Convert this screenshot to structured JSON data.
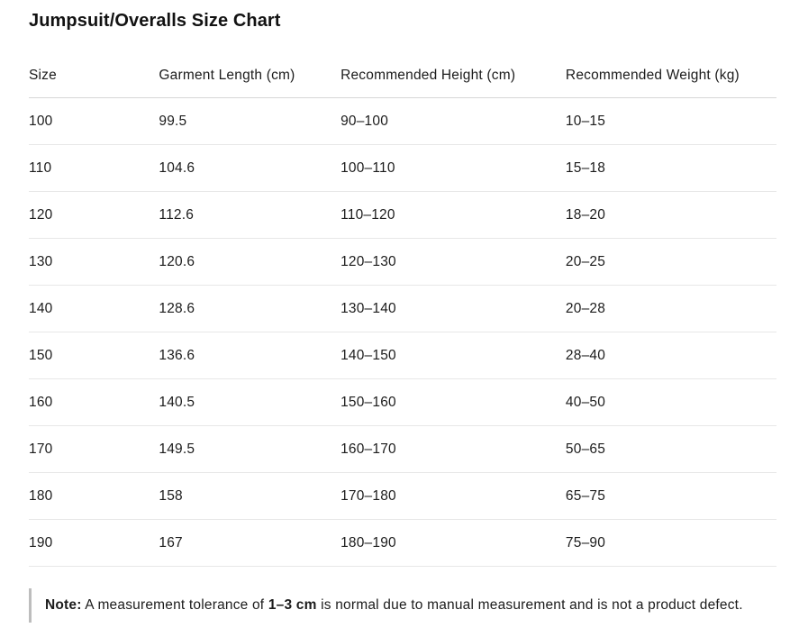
{
  "page": {
    "title": "Jumpsuit/Overalls Size Chart"
  },
  "table": {
    "columns": [
      "Size",
      "Garment Length (cm)",
      "Recommended Height (cm)",
      "Recommended Weight (kg)"
    ],
    "column_keys": [
      "size",
      "garment-length",
      "recommended-height",
      "recommended-weight"
    ],
    "rows": [
      [
        "100",
        "99.5",
        "90–100",
        "10–15"
      ],
      [
        "110",
        "104.6",
        "100–110",
        "15–18"
      ],
      [
        "120",
        "112.6",
        "110–120",
        "18–20"
      ],
      [
        "130",
        "120.6",
        "120–130",
        "20–25"
      ],
      [
        "140",
        "128.6",
        "130–140",
        "20–28"
      ],
      [
        "150",
        "136.6",
        "140–150",
        "28–40"
      ],
      [
        "160",
        "140.5",
        "150–160",
        "40–50"
      ],
      [
        "170",
        "149.5",
        "160–170",
        "50–65"
      ],
      [
        "180",
        "158",
        "170–180",
        "65–75"
      ],
      [
        "190",
        "167",
        "180–190",
        "75–90"
      ]
    ]
  },
  "note": {
    "label": "Note:",
    "text_1": " A measurement tolerance of ",
    "bold_value": "1–3 cm",
    "text_2": " is normal due to manual measurement and is not a product defect."
  },
  "colors": {
    "text": "#1c1c1c",
    "header_border": "#d6d6d6",
    "row_border": "#e7e7e7",
    "note_bar": "#bdbdbd",
    "background": "#ffffff"
  }
}
